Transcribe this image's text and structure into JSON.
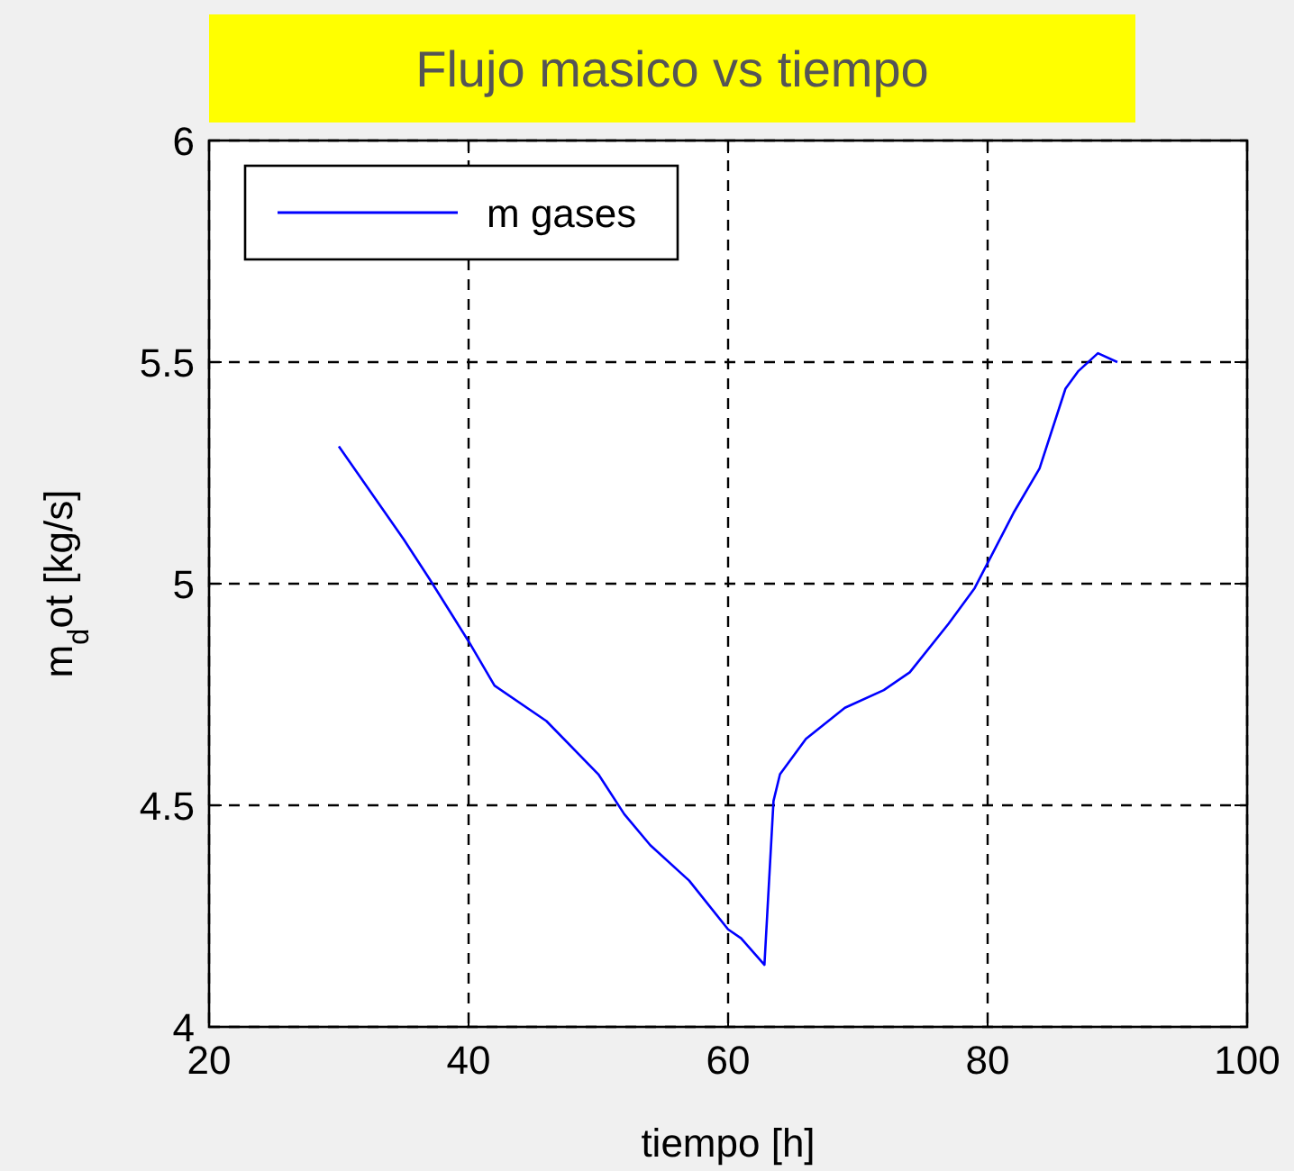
{
  "chart_data": {
    "type": "line",
    "title": "Flujo masico vs tiempo",
    "xlabel": "tiempo [h]",
    "ylabel": "m$_{d}$ot [kg/s]",
    "xlim": [
      20,
      100
    ],
    "xticks": [
      20,
      40,
      60,
      80,
      100
    ],
    "ylim": [
      4,
      6
    ],
    "yticks": [
      4,
      4.5,
      5,
      5.5,
      6
    ],
    "grid": true,
    "legend": "top left",
    "line_style": "solid",
    "series": [
      {
        "name": "m gases",
        "color": "#0000ff",
        "x": [
          30,
          35,
          37,
          40,
          42,
          46,
          50,
          52,
          54,
          57,
          60,
          61,
          62.8,
          63.5,
          64,
          66,
          69,
          72,
          74,
          77,
          79,
          82,
          84,
          86,
          87,
          88.5,
          90
        ],
        "values": [
          5.31,
          5.1,
          5.01,
          4.87,
          4.77,
          4.69,
          4.57,
          4.48,
          4.41,
          4.33,
          4.22,
          4.2,
          4.14,
          4.51,
          4.57,
          4.65,
          4.72,
          4.76,
          4.8,
          4.91,
          4.99,
          5.16,
          5.26,
          5.44,
          5.48,
          5.52,
          5.5
        ]
      }
    ]
  }
}
